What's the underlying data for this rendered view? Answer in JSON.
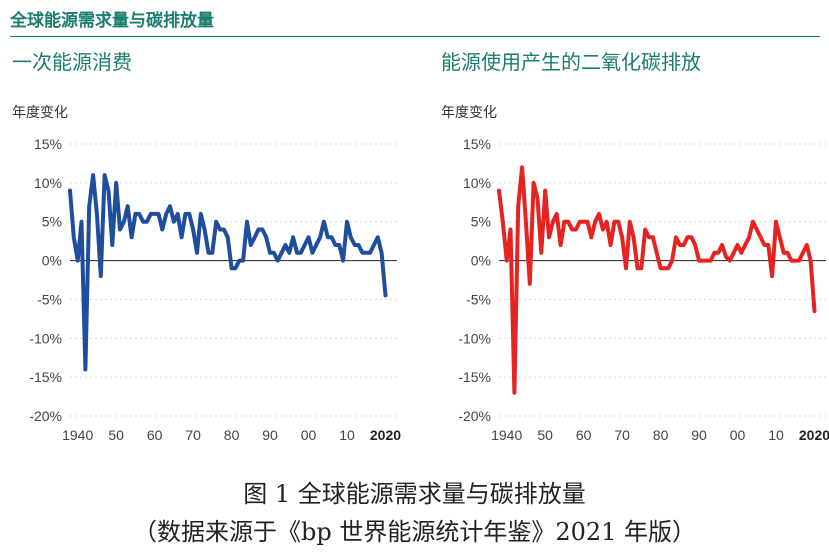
{
  "header": {
    "title": "全球能源需求量与碳排放量"
  },
  "caption": {
    "line1": "图 1 全球能源需求量与碳排放量",
    "line2": "（数据来源于《bp 世界能源统计年鉴》2021 年版）"
  },
  "chart_data": [
    {
      "type": "line",
      "title": "一次能源消费",
      "ylabel": "年度变化",
      "ylim": [
        -20,
        15
      ],
      "yticks": [
        15,
        10,
        5,
        0,
        -5,
        -10,
        -15,
        -20
      ],
      "ytick_labels": [
        "15%",
        "10%",
        "5%",
        "0%",
        "-5%",
        "-10%",
        "-15%",
        "-20%"
      ],
      "xlim": [
        1938,
        2023
      ],
      "xticks": [
        1940,
        1950,
        1960,
        1970,
        1980,
        1990,
        2000,
        2010,
        2020
      ],
      "xtick_labels": [
        "1940",
        "50",
        "60",
        "70",
        "80",
        "90",
        "00",
        "10",
        "2020"
      ],
      "color": "#1f4e9c",
      "series": [
        {
          "x": [
            1938,
            1939,
            1940,
            1941,
            1942,
            1943,
            1944,
            1945,
            1946,
            1947,
            1948,
            1949,
            1950,
            1951,
            1952,
            1953,
            1954,
            1955,
            1956,
            1957,
            1958,
            1959,
            1960,
            1961,
            1962,
            1963,
            1964,
            1965,
            1966,
            1967,
            1968,
            1969,
            1970,
            1971,
            1972,
            1973,
            1974,
            1975,
            1976,
            1977,
            1978,
            1979,
            1980,
            1981,
            1982,
            1983,
            1984,
            1985,
            1986,
            1987,
            1988,
            1989,
            1990,
            1991,
            1992,
            1993,
            1994,
            1995,
            1996,
            1997,
            1998,
            1999,
            2000,
            2001,
            2002,
            2003,
            2004,
            2005,
            2006,
            2007,
            2008,
            2009,
            2010,
            2011,
            2012,
            2013,
            2014,
            2015,
            2016,
            2017,
            2018,
            2019,
            2020
          ],
          "values": [
            9,
            3,
            0,
            5,
            -14,
            7,
            11,
            6,
            -2,
            11,
            9,
            2,
            10,
            4,
            5,
            7,
            3,
            6,
            6,
            5,
            5,
            6,
            6,
            6,
            4,
            6,
            7,
            5,
            6,
            3,
            6,
            6,
            4,
            1,
            6,
            4,
            1,
            1,
            5,
            4,
            4,
            3,
            -1,
            -1,
            0,
            0,
            5,
            2,
            3,
            4,
            4,
            3,
            1,
            1,
            0,
            1,
            2,
            1,
            3,
            1,
            1,
            2,
            3,
            1,
            2,
            3,
            5,
            3,
            3,
            2,
            2,
            0,
            5,
            3,
            2,
            2,
            1,
            1,
            1,
            2,
            3,
            1,
            -4.5
          ]
        }
      ]
    },
    {
      "type": "line",
      "title": "能源使用产生的二氧化碳排放",
      "ylabel": "年度变化",
      "ylim": [
        -20,
        15
      ],
      "yticks": [
        15,
        10,
        5,
        0,
        -5,
        -10,
        -15,
        -20
      ],
      "ytick_labels": [
        "15%",
        "10%",
        "5%",
        "0%",
        "-5%",
        "-10%",
        "-15%",
        "-20%"
      ],
      "xlim": [
        1938,
        2023
      ],
      "xticks": [
        1940,
        1950,
        1960,
        1970,
        1980,
        1990,
        2000,
        2010,
        2020
      ],
      "xtick_labels": [
        "1940",
        "50",
        "60",
        "70",
        "80",
        "90",
        "00",
        "10",
        "2020"
      ],
      "color": "#e52421",
      "series": [
        {
          "x": [
            1938,
            1939,
            1940,
            1941,
            1942,
            1943,
            1944,
            1945,
            1946,
            1947,
            1948,
            1949,
            1950,
            1951,
            1952,
            1953,
            1954,
            1955,
            1956,
            1957,
            1958,
            1959,
            1960,
            1961,
            1962,
            1963,
            1964,
            1965,
            1966,
            1967,
            1968,
            1969,
            1970,
            1971,
            1972,
            1973,
            1974,
            1975,
            1976,
            1977,
            1978,
            1979,
            1980,
            1981,
            1982,
            1983,
            1984,
            1985,
            1986,
            1987,
            1988,
            1989,
            1990,
            1991,
            1992,
            1993,
            1994,
            1995,
            1996,
            1997,
            1998,
            1999,
            2000,
            2001,
            2002,
            2003,
            2004,
            2005,
            2006,
            2007,
            2008,
            2009,
            2010,
            2011,
            2012,
            2013,
            2014,
            2015,
            2016,
            2017,
            2018,
            2019,
            2020
          ],
          "values": [
            9,
            5,
            0,
            4,
            -17,
            7,
            12,
            5,
            -3,
            10,
            8,
            1,
            9,
            3,
            5,
            6,
            2,
            5,
            5,
            4,
            4,
            5,
            5,
            5,
            3,
            5,
            6,
            4,
            5,
            2,
            5,
            5,
            3,
            -1,
            5,
            3,
            -1,
            -1,
            4,
            3,
            3,
            1,
            -1,
            -1,
            -1,
            0,
            3,
            2,
            2,
            3,
            3,
            2,
            0,
            0,
            0,
            0,
            1,
            1,
            2,
            0.5,
            0,
            1,
            2,
            1,
            2,
            3,
            5,
            4,
            3,
            2,
            2,
            -2,
            5,
            3,
            1,
            1,
            0,
            0,
            0,
            1,
            2,
            0,
            -6.5
          ]
        }
      ]
    }
  ]
}
